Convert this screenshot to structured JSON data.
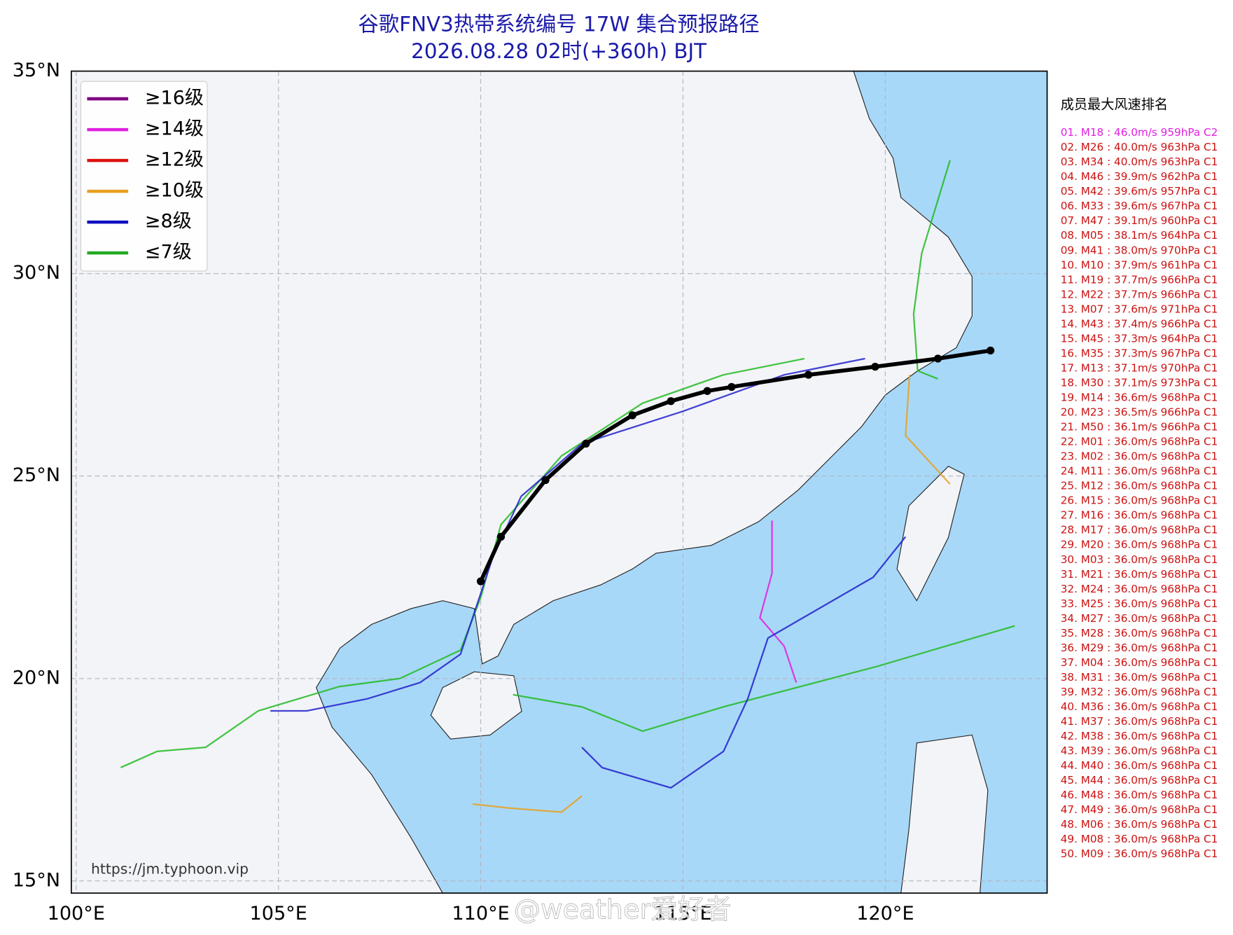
{
  "title": "谷歌FNV3热带系统编号 17W 集合预报路径",
  "subtitle": "2026.08.28 02时(+360h) BJT",
  "map": {
    "xlim": [
      99.88,
      124.0
    ],
    "ylim": [
      14.7,
      35.0
    ],
    "xticks": [
      {
        "value": 100,
        "label": "100°E"
      },
      {
        "value": 105,
        "label": "105°E"
      },
      {
        "value": 110,
        "label": "110°E"
      },
      {
        "value": 115,
        "label": "115°E"
      },
      {
        "value": 120,
        "label": "120°E"
      }
    ],
    "yticks": [
      {
        "value": 15,
        "label": "15°N"
      },
      {
        "value": 20,
        "label": "20°N"
      },
      {
        "value": 25,
        "label": "25°N"
      },
      {
        "value": 30,
        "label": "30°N"
      },
      {
        "value": 35,
        "label": "35°N"
      }
    ],
    "grid": true
  },
  "legend": [
    {
      "label": "≥16级",
      "color": "#800080"
    },
    {
      "label": "≥14级",
      "color": "#e020e0"
    },
    {
      "label": "≥12级",
      "color": "#dd1111"
    },
    {
      "label": "≥10级",
      "color": "#e8a020"
    },
    {
      "label": "≥8级",
      "color": "#1010c0"
    },
    {
      "label": "≤7级",
      "color": "#22aa22"
    }
  ],
  "mean_track": {
    "color": "#000000",
    "lon": [
      110.0,
      110.5,
      111.6,
      112.6,
      113.75,
      114.7,
      115.6,
      116.2,
      118.1,
      119.75,
      121.3,
      122.6
    ],
    "lat": [
      22.4,
      23.5,
      24.9,
      25.8,
      26.5,
      26.85,
      27.1,
      27.2,
      27.5,
      27.7,
      27.9,
      28.1
    ]
  },
  "tracks": [
    {
      "color": "#22bb22",
      "lon": [
        101.1,
        102.0,
        103.2,
        104.5,
        106.5,
        108.0,
        109.5,
        110.0,
        110.5,
        112.0,
        114.0,
        116.0,
        118.0
      ],
      "lat": [
        17.8,
        18.2,
        18.3,
        19.2,
        19.8,
        20.0,
        20.7,
        22.0,
        23.8,
        25.5,
        26.8,
        27.5,
        27.9
      ]
    },
    {
      "color": "#2222cc",
      "lon": [
        104.8,
        105.7,
        107.2,
        108.5,
        109.5,
        110.3,
        111.0,
        112.5,
        115.0,
        117.5,
        119.5
      ],
      "lat": [
        19.2,
        19.2,
        19.5,
        19.9,
        20.6,
        23.0,
        24.5,
        25.8,
        26.6,
        27.5,
        27.9
      ]
    },
    {
      "color": "#22bb22",
      "lon": [
        123.2,
        119.8,
        116.0,
        114.0,
        112.5,
        110.8
      ],
      "lat": [
        21.3,
        20.3,
        19.3,
        18.7,
        19.3,
        19.6
      ]
    },
    {
      "color": "#22bb22",
      "lon": [
        121.6,
        120.9,
        120.7,
        120.8,
        121.3
      ],
      "lat": [
        32.8,
        30.5,
        29.0,
        27.6,
        27.4
      ]
    },
    {
      "color": "#e8a020",
      "lon": [
        120.6,
        120.5,
        121.6
      ],
      "lat": [
        27.5,
        26.0,
        24.8
      ]
    },
    {
      "color": "#e020e0",
      "lon": [
        117.2,
        117.2,
        116.9,
        117.5,
        117.8
      ],
      "lat": [
        23.9,
        22.6,
        21.5,
        20.8,
        19.9
      ]
    },
    {
      "color": "#2222cc",
      "lon": [
        112.5,
        113.0,
        114.7,
        116.0,
        116.6,
        117.1,
        119.7,
        120.5
      ],
      "lat": [
        18.3,
        17.8,
        17.3,
        18.2,
        19.5,
        21.0,
        22.5,
        23.5
      ]
    },
    {
      "color": "#e8a020",
      "lon": [
        109.8,
        110.7,
        112.0,
        112.5
      ],
      "lat": [
        16.9,
        16.8,
        16.7,
        17.1
      ]
    }
  ],
  "ranking": {
    "title": "成员最大风速排名",
    "top_color": "#e020e0",
    "color": "#cc1111",
    "items": [
      "01. M18 : 46.0m/s 959hPa C2",
      "02. M26 : 40.0m/s 963hPa C1",
      "03. M34 : 40.0m/s 963hPa C1",
      "04. M46 : 39.9m/s 962hPa C1",
      "05. M42 : 39.6m/s 957hPa C1",
      "06. M33 : 39.6m/s 967hPa C1",
      "07. M47 : 39.1m/s 960hPa C1",
      "08. M05 : 38.1m/s 964hPa C1",
      "09. M41 : 38.0m/s 970hPa C1",
      "10. M10 : 37.9m/s 961hPa C1",
      "11. M19 : 37.7m/s 966hPa C1",
      "12. M22 : 37.7m/s 966hPa C1",
      "13. M07 : 37.6m/s 971hPa C1",
      "14. M43 : 37.4m/s 966hPa C1",
      "15. M45 : 37.3m/s 964hPa C1",
      "16. M35 : 37.3m/s 967hPa C1",
      "17. M13 : 37.1m/s 970hPa C1",
      "18. M30 : 37.1m/s 973hPa C1",
      "19. M14 : 36.6m/s 968hPa C1",
      "20. M23 : 36.5m/s 966hPa C1",
      "21. M50 : 36.1m/s 966hPa C1",
      "22. M01 : 36.0m/s 968hPa C1",
      "23. M02 : 36.0m/s 968hPa C1",
      "24. M11 : 36.0m/s 968hPa C1",
      "25. M12 : 36.0m/s 968hPa C1",
      "26. M15 : 36.0m/s 968hPa C1",
      "27. M16 : 36.0m/s 968hPa C1",
      "28. M17 : 36.0m/s 968hPa C1",
      "29. M20 : 36.0m/s 968hPa C1",
      "30. M03 : 36.0m/s 968hPa C1",
      "31. M21 : 36.0m/s 968hPa C1",
      "32. M24 : 36.0m/s 968hPa C1",
      "33. M25 : 36.0m/s 968hPa C1",
      "34. M27 : 36.0m/s 968hPa C1",
      "35. M28 : 36.0m/s 968hPa C1",
      "36. M29 : 36.0m/s 968hPa C1",
      "37. M04 : 36.0m/s 968hPa C1",
      "38. M31 : 36.0m/s 968hPa C1",
      "39. M32 : 36.0m/s 968hPa C1",
      "40. M36 : 36.0m/s 968hPa C1",
      "41. M37 : 36.0m/s 968hPa C1",
      "42. M38 : 36.0m/s 968hPa C1",
      "43. M39 : 36.0m/s 968hPa C1",
      "44. M40 : 36.0m/s 968hPa C1",
      "45. M44 : 36.0m/s 968hPa C1",
      "46. M48 : 36.0m/s 968hPa C1",
      "47. M49 : 36.0m/s 968hPa C1",
      "48. M06 : 36.0m/s 968hPa C1",
      "49. M08 : 36.0m/s 968hPa C1",
      "50. M09 : 36.0m/s 968hPa C1"
    ]
  },
  "source": "https://jm.typhoon.vip",
  "watermark": "@weather爱好者"
}
